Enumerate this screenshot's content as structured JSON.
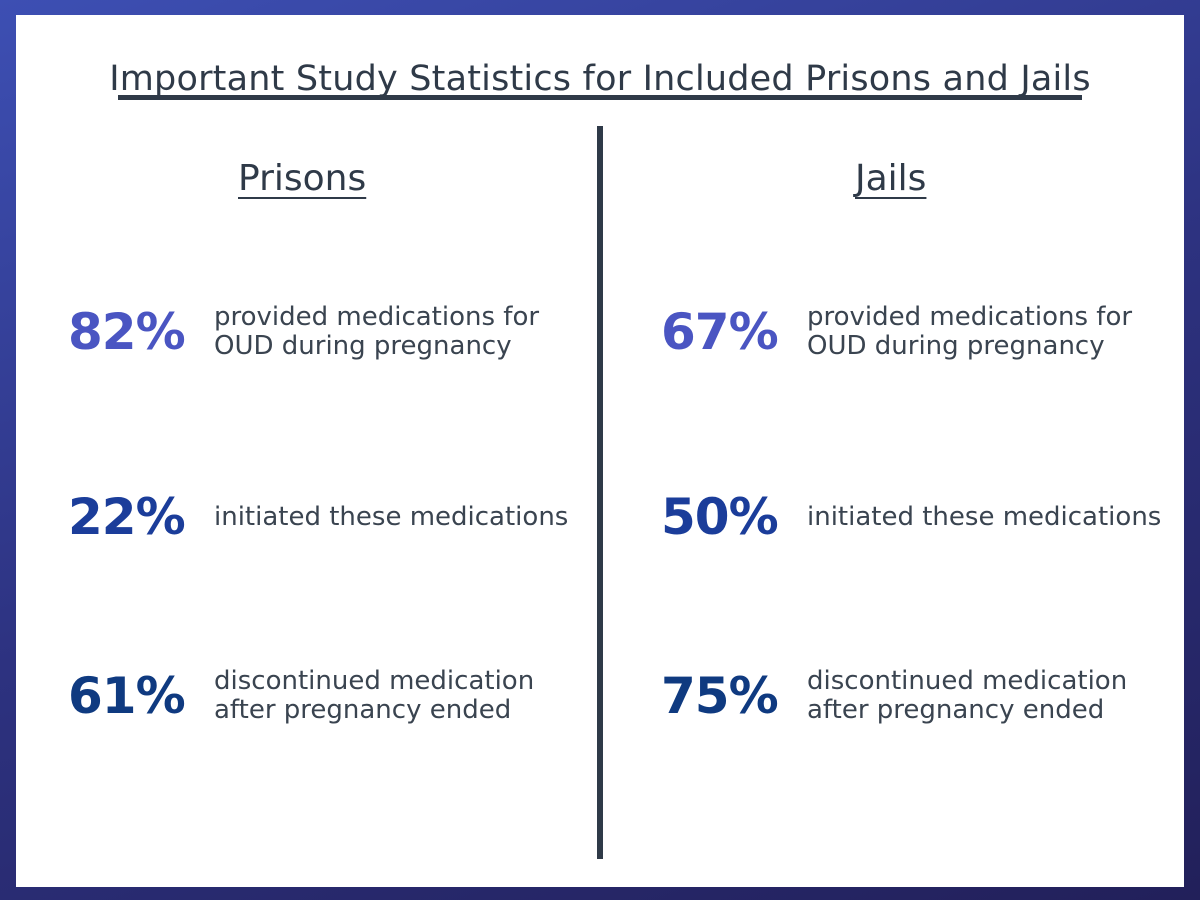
{
  "title": "Important Study Statistics for Included Prisons and Jails",
  "columns": [
    {
      "heading": "Prisons",
      "stats": [
        {
          "percent": "82%",
          "text": "provided medications for OUD during pregnancy"
        },
        {
          "percent": "22%",
          "text": "initiated these medications"
        },
        {
          "percent": "61%",
          "text": "discontinued medication after pregnancy ended"
        }
      ]
    },
    {
      "heading": "Jails",
      "stats": [
        {
          "percent": "67%",
          "text": "provided medications for OUD during pregnancy"
        },
        {
          "percent": "50%",
          "text": "initiated these medications"
        },
        {
          "percent": "75%",
          "text": "discontinued medication after pregnancy ended"
        }
      ]
    }
  ],
  "colors": {
    "first_stat": "#4a55c2",
    "second_stat": "#1b3d9a",
    "third_stat": "#0f3a80",
    "text": "#2f3a48",
    "background_gradient": [
      "#3d4fb3",
      "#22205a"
    ]
  }
}
